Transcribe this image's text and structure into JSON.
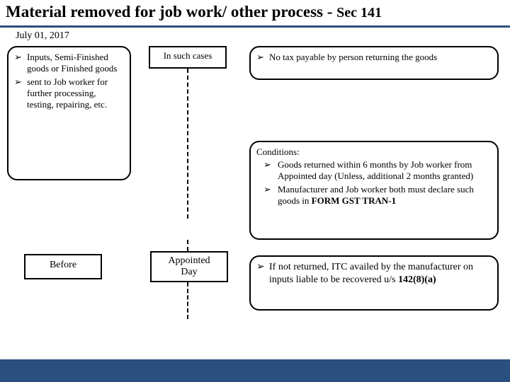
{
  "title": {
    "main": "Material removed for job work/ other process",
    "sep": " - ",
    "sub": "Sec 141",
    "main_fontsize": 23,
    "sub_fontsize": 20,
    "underline_color": "#2b4f7e"
  },
  "left_box": {
    "items": [
      "Inputs, Semi-Finished goods or Finished goods",
      "sent to Job worker for further processing, testing, repairing, etc."
    ],
    "fontsize": 13
  },
  "before_box": {
    "label": "Before",
    "fontsize": 14
  },
  "such_box": {
    "label": "In such cases",
    "fontsize": 13
  },
  "july_box": {
    "label": "July 01, 2017",
    "fontsize": 14
  },
  "appointed_box": {
    "line1": "Appointed",
    "line2": "Day",
    "fontsize": 14
  },
  "notax_box": {
    "items": [
      "No tax payable by person returning the goods"
    ],
    "fontsize": 13
  },
  "cond_box": {
    "title": "Conditions:",
    "items": [
      "Goods returned within 6 months by Job worker from Appointed day (Unless, additional 2 months granted)",
      "Manufacturer and Job worker both must declare such goods in "
    ],
    "item2_bold": "FORM GST TRAN-1",
    "fontsize": 13
  },
  "itc_box": {
    "prefix": "If not returned, ITC availed by the manufacturer on inputs liable to be recovered u/s ",
    "bold": "142(8)(a)",
    "fontsize": 14
  },
  "colors": {
    "footer_band": "#2b4f7e",
    "background": "#ffffff",
    "border": "#000000"
  }
}
